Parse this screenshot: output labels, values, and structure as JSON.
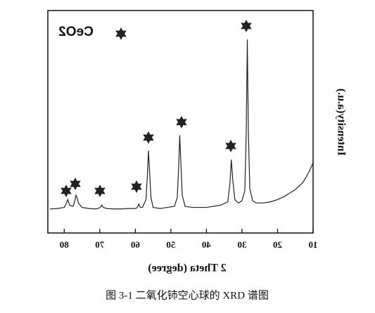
{
  "chart_data": {
    "type": "line",
    "legend": "CeO2",
    "xlabel": "2 Theta (degree)",
    "ylabel": "Intensity(a.u.)",
    "caption": "图 3-1 二氧化铈空心球的 XRD 谱图",
    "xlim": [
      10,
      84.6
    ],
    "xticks": [
      10,
      20,
      30,
      40,
      50,
      60,
      70,
      80
    ],
    "ylim": [
      0,
      100
    ],
    "color": "#222222",
    "x": [
      10,
      11,
      12,
      13,
      14,
      15,
      16,
      17,
      18,
      20,
      22,
      24,
      26,
      27,
      27.8,
      28.2,
      28.5,
      28.8,
      29.2,
      30,
      31,
      32,
      32.6,
      33,
      33.4,
      34,
      36,
      38,
      40,
      42,
      44,
      46,
      46.8,
      47.2,
      47.5,
      47.8,
      48.2,
      49,
      51,
      53,
      55,
      55.6,
      56,
      56.3,
      56.6,
      57,
      58,
      58.6,
      59,
      59.4,
      60,
      62,
      64,
      66,
      68,
      69,
      69.4,
      69.8,
      71,
      73,
      75,
      76,
      76.4,
      76.7,
      77,
      77.5,
      78.5,
      79,
      79.5,
      80,
      82,
      84
    ],
    "y": [
      31.5,
      28,
      25,
      22.5,
      21,
      19.5,
      18.5,
      17.5,
      16.5,
      15,
      14,
      13.5,
      13.5,
      14.5,
      20,
      45,
      87,
      45,
      19,
      14.5,
      13.5,
      15,
      24,
      33,
      22,
      14,
      12.5,
      12,
      11.5,
      11.5,
      11.5,
      12,
      17,
      32,
      44,
      30,
      16,
      12,
      11.5,
      11,
      11.5,
      16,
      28,
      37,
      26,
      15,
      11.5,
      11.5,
      13,
      11.5,
      11,
      11,
      10.8,
      10.8,
      11,
      11.5,
      12.6,
      11.5,
      10.8,
      11,
      11.5,
      13.5,
      16,
      17,
      14.5,
      12,
      12.5,
      15,
      13,
      11.5,
      11,
      10.8
    ]
  }
}
